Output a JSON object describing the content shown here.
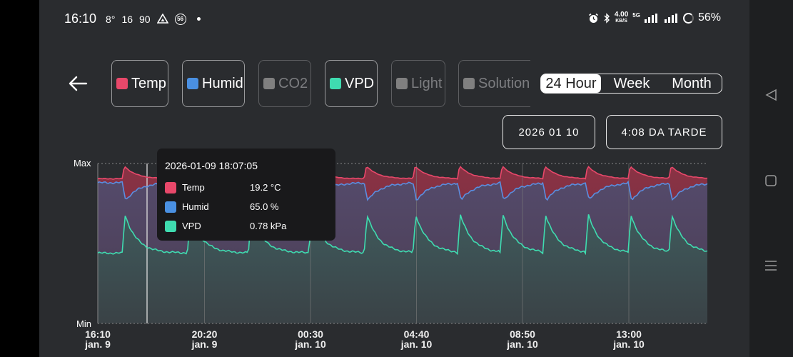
{
  "status_bar": {
    "time": "16:10",
    "indicators": [
      "8°",
      "16",
      "90"
    ],
    "badge": "56",
    "net_speed": "4.00",
    "net_unit": "KB/S",
    "net_type": "5G",
    "battery": "56%",
    "icons": [
      "alarm-icon",
      "bluetooth-icon",
      "signal-icon",
      "signal-icon",
      "battery-ring-icon"
    ]
  },
  "header": {
    "back_icon": "arrow-left-icon",
    "sensors": [
      {
        "label": "Temp",
        "color": "#e8486a",
        "active": true
      },
      {
        "label": "Humid",
        "color": "#4a90e2",
        "active": true
      },
      {
        "label": "CO2",
        "color": "#808080",
        "active": false
      },
      {
        "label": "VPD",
        "color": "#3fdcb0",
        "active": true
      },
      {
        "label": "Light",
        "color": "#808080",
        "active": false
      },
      {
        "label": "Solution",
        "color": "#808080",
        "active": false
      }
    ],
    "ranges": [
      {
        "label": "24 Hour",
        "active": true
      },
      {
        "label": "Week",
        "active": false
      },
      {
        "label": "Month",
        "active": false
      }
    ],
    "date": "2026 01 10",
    "time": "4:08 DA TARDE"
  },
  "chart": {
    "y_max_label": "Max",
    "y_min_label": "Min",
    "x_ticks": [
      {
        "time": "16:10",
        "date": "jan. 9"
      },
      {
        "time": "20:20",
        "date": "jan. 9"
      },
      {
        "time": "00:30",
        "date": "jan. 10"
      },
      {
        "time": "04:40",
        "date": "jan. 10"
      },
      {
        "time": "08:50",
        "date": "jan. 10"
      },
      {
        "time": "13:00",
        "date": "jan. 10"
      }
    ],
    "tooltip": {
      "timestamp": "2026-01-09 18:07:05",
      "rows": [
        {
          "name": "Temp",
          "value": "19.2 °C",
          "color": "#e8486a"
        },
        {
          "name": "Humid",
          "value": "65.0 %",
          "color": "#4a90e2"
        },
        {
          "name": "VPD",
          "value": "0.78 kPa",
          "color": "#3fdcb0"
        }
      ]
    }
  },
  "chart_data": {
    "type": "area",
    "title": "",
    "xlabel": "",
    "ylabel": "",
    "y_range_labels": [
      "Min",
      "Max"
    ],
    "x_tick_labels": [
      "16:10 jan. 9",
      "20:20 jan. 9",
      "00:30 jan. 10",
      "04:40 jan. 10",
      "08:50 jan. 10",
      "13:00 jan. 10"
    ],
    "cycle_starts_x_normalized": [
      0.04,
      0.147,
      0.247,
      0.346,
      0.437,
      0.517,
      0.59,
      0.66,
      0.73,
      0.8,
      0.87,
      0.937
    ],
    "series": [
      {
        "name": "Temp",
        "color": "#e8486a",
        "baseline_norm": 0.905,
        "peak_norm": 0.985
      },
      {
        "name": "Humid",
        "color": "#4a90e2",
        "baseline_norm": 0.88,
        "trough_norm": 0.77
      },
      {
        "name": "VPD",
        "color": "#3fdcb0",
        "baseline_norm": 0.44,
        "peak_norm": 0.68
      }
    ],
    "tooltip_point": {
      "time": "2026-01-09 18:07:05",
      "Temp": 19.2,
      "Humid": 65.0,
      "VPD": 0.78
    },
    "grid": true,
    "legend_position": "top"
  },
  "navbar": {
    "icons": [
      "back-triangle-icon",
      "home-square-icon",
      "menu-lines-icon"
    ]
  }
}
